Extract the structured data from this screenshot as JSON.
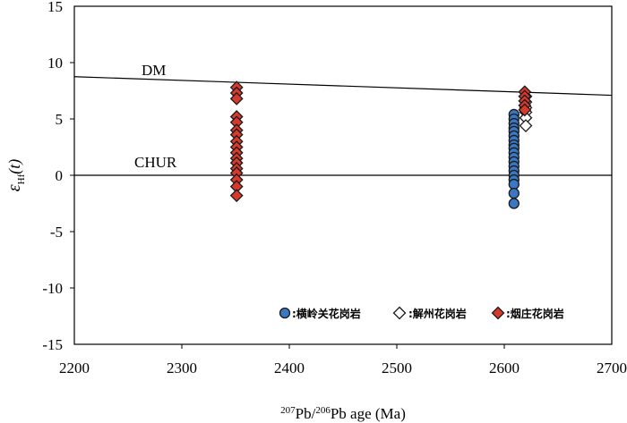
{
  "chart_data": {
    "type": "scatter",
    "xlabel": {
      "sup1": "207",
      "part1": "Pb/",
      "sup2": "206",
      "part2": "Pb age (Ma)"
    },
    "ylabel": {
      "main": "ε",
      "sub": "Hf",
      "tail": "(t)"
    },
    "xlim": [
      2200,
      2700
    ],
    "ylim": [
      -15,
      15
    ],
    "xticks": [
      "2200",
      "2300",
      "2400",
      "2500",
      "2600",
      "2700"
    ],
    "yticks": [
      "15",
      "10",
      "5",
      "0",
      "-5",
      "-10",
      "-15"
    ],
    "grid": false,
    "legend_position": "bottom-right",
    "reference_lines": [
      {
        "name": "DM",
        "x": [
          2200,
          2700
        ],
        "y": [
          8.75,
          7.1
        ]
      },
      {
        "name": "CHUR",
        "x": [
          2200,
          2700
        ],
        "y": [
          0,
          0
        ]
      }
    ],
    "series": [
      {
        "name": ":横岭关花岗岩",
        "marker": "circle",
        "fill": "#3a78c4",
        "points": [
          [
            2609,
            5.4
          ],
          [
            2609,
            5.0
          ],
          [
            2609,
            4.6
          ],
          [
            2609,
            4.2
          ],
          [
            2609,
            3.9
          ],
          [
            2609,
            3.5
          ],
          [
            2609,
            3.1
          ],
          [
            2609,
            2.7
          ],
          [
            2609,
            2.4
          ],
          [
            2609,
            2.0
          ],
          [
            2609,
            1.6
          ],
          [
            2609,
            1.2
          ],
          [
            2609,
            0.8
          ],
          [
            2609,
            0.4
          ],
          [
            2609,
            0.0
          ],
          [
            2609,
            -0.4
          ],
          [
            2609,
            -0.8
          ],
          [
            2609,
            -1.6
          ],
          [
            2609,
            -2.5
          ]
        ]
      },
      {
        "name": ":解州花岗岩",
        "marker": "diamond-open",
        "fill": "#ffffff",
        "points": [
          [
            2620,
            7.0
          ],
          [
            2620,
            6.5
          ],
          [
            2620,
            6.0
          ],
          [
            2620,
            5.6
          ],
          [
            2620,
            5.1
          ],
          [
            2620,
            4.4
          ]
        ]
      },
      {
        "name": ":烟庄花岗岩",
        "marker": "diamond",
        "fill": "#d63a2c",
        "points": [
          [
            2351,
            7.8
          ],
          [
            2351,
            7.3
          ],
          [
            2351,
            6.8
          ],
          [
            2351,
            5.2
          ],
          [
            2351,
            4.7
          ],
          [
            2351,
            4.0
          ],
          [
            2351,
            3.6
          ],
          [
            2351,
            3.0
          ],
          [
            2351,
            2.5
          ],
          [
            2351,
            2.0
          ],
          [
            2351,
            1.5
          ],
          [
            2351,
            1.1
          ],
          [
            2351,
            0.6
          ],
          [
            2351,
            0.2
          ],
          [
            2351,
            -0.4
          ],
          [
            2351,
            -1.0
          ],
          [
            2351,
            -1.8
          ],
          [
            2619,
            7.4
          ],
          [
            2619,
            7.0
          ],
          [
            2619,
            6.6
          ],
          [
            2619,
            6.2
          ],
          [
            2619,
            5.8
          ]
        ]
      }
    ]
  }
}
